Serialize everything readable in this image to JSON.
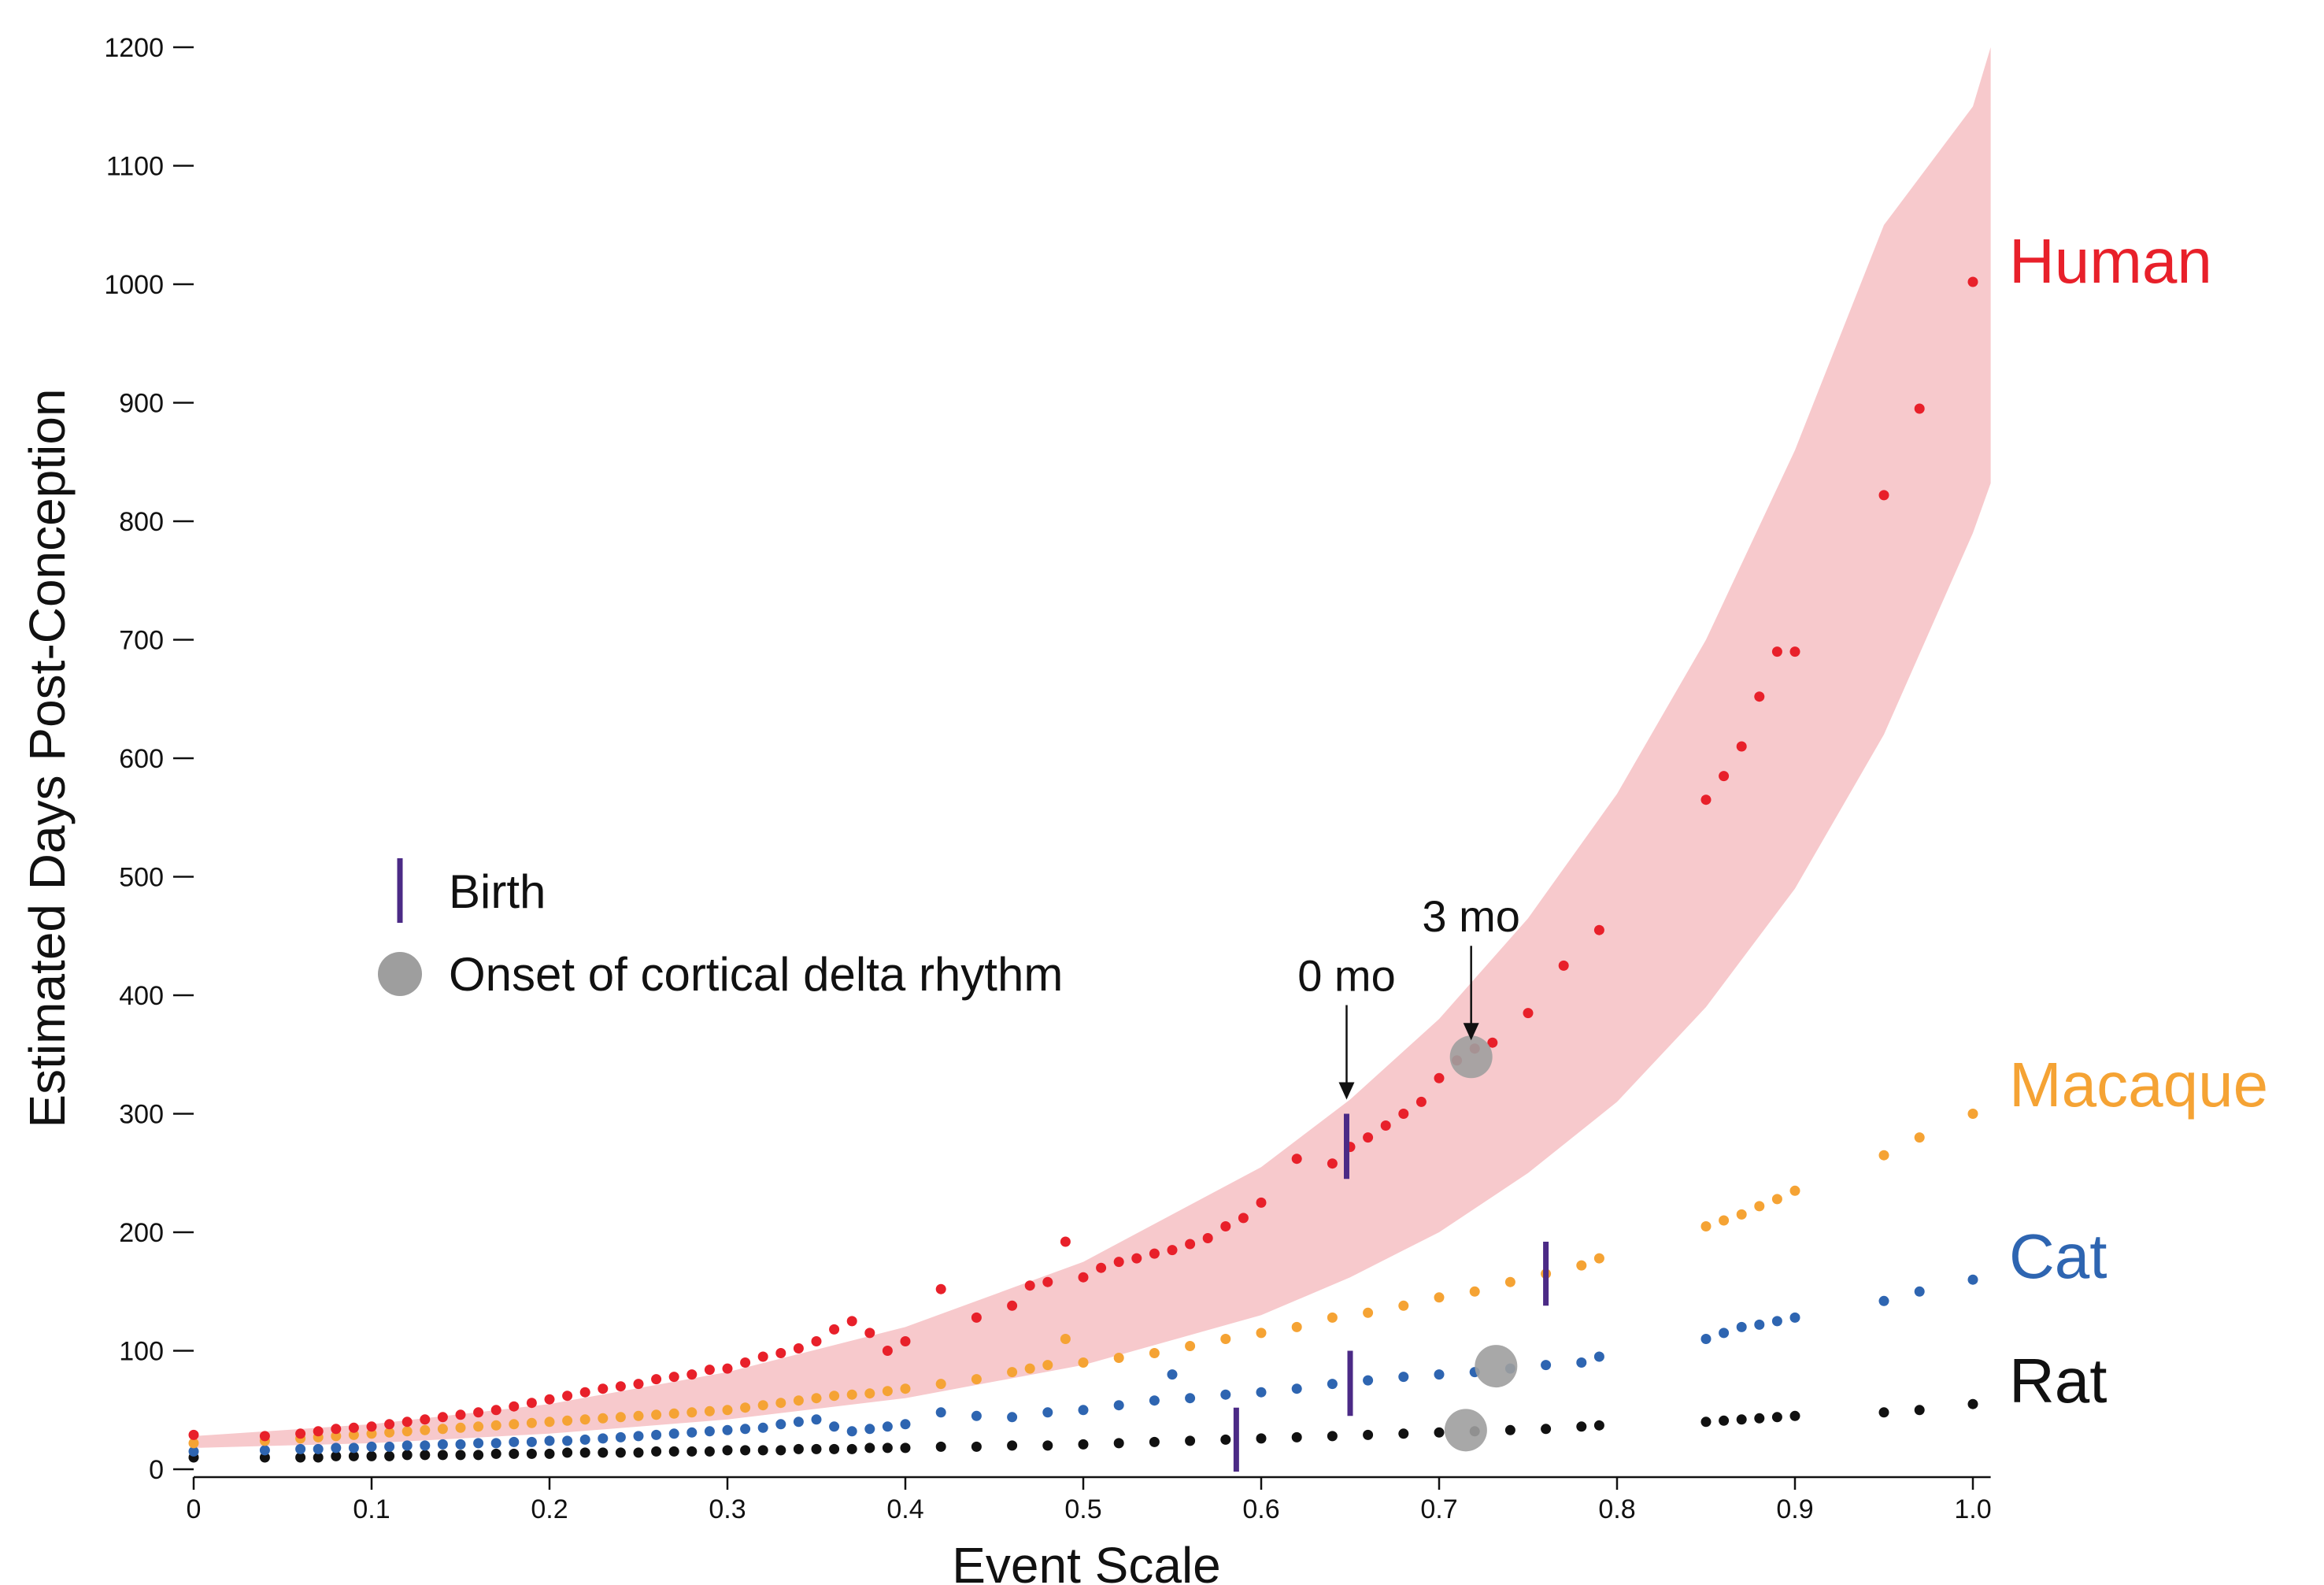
{
  "chart_data": {
    "type": "scatter",
    "title": "",
    "xlabel": "Event Scale",
    "ylabel": "Estimated Days Post-Conception",
    "xlim": [
      0,
      1.0
    ],
    "ylim": [
      0,
      1200
    ],
    "grid": false,
    "x_ticks": [
      0,
      0.1,
      0.2,
      0.3,
      0.4,
      0.5,
      0.6,
      0.7,
      0.8,
      0.9,
      1.0
    ],
    "x_tick_labels": [
      "0",
      "0.1",
      "0.2",
      "0.3",
      "0.4",
      "0.5",
      "0.6",
      "0.7",
      "0.8",
      "0.9",
      "1.0"
    ],
    "y_ticks": [
      0,
      100,
      200,
      300,
      400,
      500,
      600,
      700,
      800,
      900,
      1000,
      1100,
      1200
    ],
    "y_tick_labels": [
      "0",
      "100",
      "200",
      "300",
      "400",
      "500",
      "600",
      "700",
      "800",
      "900",
      "1000",
      "1100",
      "1200"
    ],
    "band": {
      "name": "Human confidence band",
      "color": "#f7c9cc",
      "x": [
        0,
        0.1,
        0.2,
        0.3,
        0.4,
        0.5,
        0.6,
        0.65,
        0.7,
        0.75,
        0.8,
        0.85,
        0.9,
        0.95,
        1.0,
        1.01
      ],
      "lower": [
        18,
        22,
        30,
        42,
        60,
        88,
        130,
        162,
        200,
        250,
        310,
        390,
        490,
        620,
        790,
        832
      ],
      "upper": [
        28,
        38,
        55,
        82,
        120,
        175,
        255,
        312,
        380,
        465,
        570,
        700,
        860,
        1050,
        1150,
        1200
      ]
    },
    "series": [
      {
        "name": "Human",
        "color": "#e8202a",
        "x": [
          0,
          0.04,
          0.06,
          0.07,
          0.08,
          0.09,
          0.1,
          0.11,
          0.12,
          0.13,
          0.14,
          0.15,
          0.16,
          0.17,
          0.18,
          0.19,
          0.2,
          0.21,
          0.22,
          0.23,
          0.24,
          0.25,
          0.26,
          0.27,
          0.28,
          0.29,
          0.3,
          0.31,
          0.32,
          0.33,
          0.34,
          0.35,
          0.36,
          0.37,
          0.38,
          0.39,
          0.4,
          0.42,
          0.44,
          0.46,
          0.47,
          0.48,
          0.49,
          0.5,
          0.51,
          0.52,
          0.53,
          0.54,
          0.55,
          0.56,
          0.57,
          0.58,
          0.59,
          0.6,
          0.62,
          0.64,
          0.65,
          0.66,
          0.67,
          0.68,
          0.69,
          0.7,
          0.71,
          0.72,
          0.73,
          0.75,
          0.77,
          0.79,
          0.85,
          0.86,
          0.87,
          0.88,
          0.89,
          0.9,
          0.95,
          0.97,
          1.0
        ],
        "values": [
          29,
          28,
          30,
          32,
          34,
          35,
          36,
          38,
          40,
          42,
          44,
          46,
          48,
          50,
          53,
          56,
          59,
          62,
          65,
          68,
          70,
          72,
          76,
          78,
          80,
          84,
          85,
          90,
          95,
          98,
          102,
          108,
          118,
          125,
          115,
          100,
          108,
          152,
          128,
          138,
          155,
          158,
          192,
          162,
          170,
          175,
          178,
          182,
          185,
          190,
          195,
          205,
          212,
          225,
          262,
          258,
          272,
          280,
          290,
          300,
          310,
          330,
          345,
          355,
          360,
          385,
          425,
          455,
          565,
          585,
          610,
          652,
          690,
          690,
          822,
          895,
          1002
        ]
      },
      {
        "name": "Macaque",
        "color": "#f5a334",
        "x": [
          0,
          0.04,
          0.06,
          0.07,
          0.08,
          0.09,
          0.1,
          0.11,
          0.12,
          0.13,
          0.14,
          0.15,
          0.16,
          0.17,
          0.18,
          0.19,
          0.2,
          0.21,
          0.22,
          0.23,
          0.24,
          0.25,
          0.26,
          0.27,
          0.28,
          0.29,
          0.3,
          0.31,
          0.32,
          0.33,
          0.34,
          0.35,
          0.36,
          0.37,
          0.38,
          0.39,
          0.4,
          0.42,
          0.44,
          0.46,
          0.47,
          0.48,
          0.49,
          0.5,
          0.52,
          0.54,
          0.56,
          0.58,
          0.6,
          0.62,
          0.64,
          0.66,
          0.68,
          0.7,
          0.72,
          0.74,
          0.76,
          0.78,
          0.79,
          0.85,
          0.86,
          0.87,
          0.88,
          0.89,
          0.9,
          0.95,
          0.97,
          1.0
        ],
        "values": [
          22,
          24,
          26,
          27,
          28,
          29,
          30,
          31,
          32,
          33,
          34,
          35,
          36,
          37,
          38,
          39,
          40,
          41,
          42,
          43,
          44,
          45,
          46,
          47,
          48,
          49,
          50,
          52,
          54,
          56,
          58,
          60,
          62,
          63,
          64,
          66,
          68,
          72,
          76,
          82,
          85,
          88,
          110,
          90,
          94,
          98,
          104,
          110,
          115,
          120,
          128,
          132,
          138,
          145,
          150,
          158,
          165,
          172,
          178,
          205,
          210,
          215,
          222,
          228,
          235,
          265,
          280,
          300
        ]
      },
      {
        "name": "Cat",
        "color": "#2e65b1",
        "x": [
          0,
          0.04,
          0.06,
          0.07,
          0.08,
          0.09,
          0.1,
          0.11,
          0.12,
          0.13,
          0.14,
          0.15,
          0.16,
          0.17,
          0.18,
          0.19,
          0.2,
          0.21,
          0.22,
          0.23,
          0.24,
          0.25,
          0.26,
          0.27,
          0.28,
          0.29,
          0.3,
          0.31,
          0.32,
          0.33,
          0.34,
          0.35,
          0.36,
          0.37,
          0.38,
          0.39,
          0.4,
          0.42,
          0.44,
          0.46,
          0.48,
          0.5,
          0.52,
          0.54,
          0.55,
          0.56,
          0.58,
          0.6,
          0.62,
          0.64,
          0.66,
          0.68,
          0.7,
          0.72,
          0.74,
          0.76,
          0.78,
          0.79,
          0.85,
          0.86,
          0.87,
          0.88,
          0.89,
          0.9,
          0.95,
          0.97,
          1.0
        ],
        "values": [
          15,
          16,
          17,
          17,
          18,
          18,
          19,
          19,
          20,
          20,
          21,
          21,
          22,
          22,
          23,
          23,
          24,
          24,
          25,
          26,
          27,
          28,
          29,
          30,
          31,
          32,
          33,
          34,
          35,
          38,
          40,
          42,
          36,
          32,
          34,
          36,
          38,
          48,
          45,
          44,
          48,
          50,
          54,
          58,
          80,
          60,
          63,
          65,
          68,
          72,
          75,
          78,
          80,
          82,
          85,
          88,
          90,
          95,
          110,
          115,
          120,
          122,
          125,
          128,
          142,
          150,
          160
        ]
      },
      {
        "name": "Rat",
        "color": "#111111",
        "x": [
          0,
          0.04,
          0.06,
          0.07,
          0.08,
          0.09,
          0.1,
          0.11,
          0.12,
          0.13,
          0.14,
          0.15,
          0.16,
          0.17,
          0.18,
          0.19,
          0.2,
          0.21,
          0.22,
          0.23,
          0.24,
          0.25,
          0.26,
          0.27,
          0.28,
          0.29,
          0.3,
          0.31,
          0.32,
          0.33,
          0.34,
          0.35,
          0.36,
          0.37,
          0.38,
          0.39,
          0.4,
          0.42,
          0.44,
          0.46,
          0.48,
          0.5,
          0.52,
          0.54,
          0.56,
          0.58,
          0.6,
          0.62,
          0.64,
          0.66,
          0.68,
          0.7,
          0.72,
          0.74,
          0.76,
          0.78,
          0.79,
          0.85,
          0.86,
          0.87,
          0.88,
          0.89,
          0.9,
          0.95,
          0.97,
          1.0
        ],
        "values": [
          10,
          10,
          10,
          10,
          11,
          11,
          11,
          11,
          12,
          12,
          12,
          12,
          12,
          13,
          13,
          13,
          13,
          14,
          14,
          14,
          14,
          14,
          15,
          15,
          15,
          15,
          16,
          16,
          16,
          16,
          17,
          17,
          17,
          17,
          18,
          18,
          18,
          19,
          19,
          20,
          20,
          21,
          22,
          23,
          24,
          25,
          26,
          27,
          28,
          29,
          30,
          31,
          32,
          33,
          34,
          36,
          37,
          40,
          41,
          42,
          43,
          44,
          45,
          48,
          50,
          55
        ]
      }
    ],
    "birth_markers": [
      {
        "species": "Human",
        "x": 0.648,
        "y_low": 245,
        "y_high": 300
      },
      {
        "species": "Macaque",
        "x": 0.76,
        "y_low": 138,
        "y_high": 192
      },
      {
        "species": "Cat",
        "x": 0.65,
        "y_low": 45,
        "y_high": 100
      },
      {
        "species": "Rat",
        "x": 0.586,
        "y_low": -2,
        "y_high": 52
      }
    ],
    "delta_onset_markers": [
      {
        "species": "Human",
        "x": 0.718,
        "y": 348
      },
      {
        "species": "Cat",
        "x": 0.732,
        "y": 87
      },
      {
        "species": "Rat",
        "x": 0.715,
        "y": 33
      }
    ],
    "annotations": [
      {
        "text": "0 mo",
        "x": 0.648,
        "y": 312
      },
      {
        "text": "3 mo",
        "x": 0.718,
        "y": 362
      }
    ],
    "species_labels": [
      {
        "text": "Human",
        "color": "#e8202a",
        "y": 1020
      },
      {
        "text": "Macaque",
        "color": "#f5a334",
        "y": 325
      },
      {
        "text": "Cat",
        "color": "#2e65b1",
        "y": 180
      },
      {
        "text": "Rat",
        "color": "#111111",
        "y": 75
      }
    ],
    "legend": {
      "position": "middle-left",
      "items": [
        {
          "label": "Birth",
          "marker": "bar",
          "color": "#4b2a86"
        },
        {
          "label": "Onset of cortical delta rhythm",
          "marker": "circle",
          "color": "#9e9e9e"
        }
      ]
    }
  }
}
